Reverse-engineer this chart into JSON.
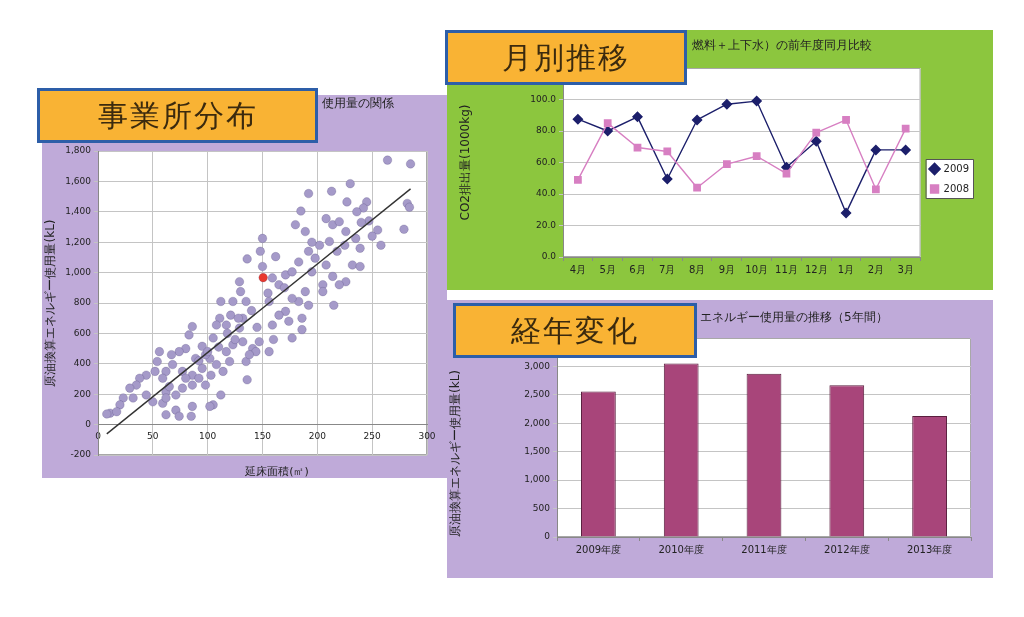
{
  "chart_data": [
    {
      "type": "scatter",
      "title": "事業所分布",
      "subtitle": "使用量の関係",
      "xlabel": "延床面積(㎡)",
      "ylabel": "原油換算エネルギー使用量(kL)",
      "xlim": [
        0,
        300
      ],
      "xticks": [
        0,
        50,
        100,
        150,
        200,
        250,
        300
      ],
      "ylim": [
        -200,
        1800
      ],
      "yticks": [
        -200,
        0,
        200,
        400,
        600,
        800,
        {
          "value": 1000,
          "label": "1,000"
        },
        {
          "value": 1200,
          "label": "1,200"
        },
        {
          "value": 1400,
          "label": "1,400"
        },
        {
          "value": 1600,
          "label": "1,600"
        },
        {
          "value": 1800,
          "label": "1,800"
        }
      ],
      "grid": true,
      "marker": "circle",
      "line_style": "solid",
      "series": [
        {
          "color": "#a59ac9",
          "x": [
            264,
            285,
            230,
            213,
            192,
            282,
            284,
            279,
            247,
            245,
            242,
            236,
            227,
            185,
            180,
            189,
            208,
            214,
            220,
            226,
            235,
            255,
            258,
            239,
            232,
            239,
            226,
            220,
            215,
            205,
            205,
            198,
            195,
            189,
            192,
            183,
            177,
            171,
            165,
            186,
            174,
            186,
            177,
            159,
            156,
            165,
            171,
            177,
            183,
            192,
            202,
            211,
            218,
            208,
            214,
            150,
            148,
            136,
            150,
            162,
            159,
            155,
            129,
            130,
            135,
            123,
            112,
            111,
            117,
            108,
            105,
            95,
            86,
            83,
            80,
            74,
            67,
            56,
            54,
            62,
            68,
            77,
            86,
            95,
            102,
            108,
            117,
            123,
            132,
            141,
            147,
            156,
            135,
            136,
            144,
            120,
            114,
            103,
            98,
            105,
            112,
            86,
            77,
            71,
            62,
            59,
            52,
            44,
            38,
            35,
            29,
            23,
            20,
            11,
            8,
            17,
            32,
            44,
            50,
            59,
            62,
            71,
            74,
            85,
            86,
            102,
            62,
            65,
            80,
            92,
            98,
            89,
            129,
            121,
            132,
            140,
            128,
            118,
            125,
            145,
            160,
            138,
            110,
            100,
            92,
            170,
            195,
            225,
            250,
            240
          ],
          "values": [
            1740,
            1715,
            1585,
            1535,
            1520,
            1455,
            1430,
            1285,
            1340,
            1465,
            1425,
            1400,
            1465,
            1405,
            1315,
            1270,
            1355,
            1315,
            1335,
            1270,
            1225,
            1280,
            1180,
            1160,
            1050,
            1040,
            940,
            920,
            785,
            920,
            875,
            1095,
            1005,
            875,
            785,
            810,
            830,
            745,
            720,
            700,
            680,
            625,
            570,
            655,
            810,
            920,
            985,
            1005,
            1070,
            1140,
            1180,
            1205,
            1140,
            1050,
            975,
            1225,
            1140,
            1090,
            1040,
            1105,
            965,
            865,
            940,
            875,
            810,
            810,
            810,
            700,
            655,
            655,
            570,
            515,
            645,
            590,
            500,
            480,
            460,
            480,
            415,
            350,
            395,
            350,
            325,
            370,
            435,
            395,
            480,
            525,
            545,
            500,
            545,
            480,
            415,
            295,
            480,
            415,
            350,
            325,
            260,
            130,
            195,
            260,
            240,
            195,
            215,
            305,
            350,
            325,
            305,
            260,
            240,
            175,
            130,
            75,
            70,
            85,
            175,
            195,
            150,
            140,
            65,
            95,
            55,
            55,
            120,
            120,
            175,
            250,
            305,
            305,
            460,
            435,
            635,
            720,
            700,
            750,
            700,
            600,
            560,
            640,
            560,
            460,
            510,
            480,
            420,
            900,
            1200,
            1180,
            1240,
            1330
          ]
        },
        {
          "color": "#e8392e",
          "x": [
            150.6
          ],
          "values": [
            967
          ]
        },
        {
          "type": "line",
          "color": "#333333",
          "marker": "none",
          "x": [
            8,
            285
          ],
          "values": [
            -61,
            1551
          ]
        }
      ]
    },
    {
      "type": "line",
      "title": "月別推移",
      "subtitle": "燃料＋上下水）の前年度同月比較",
      "ylabel": "CO2排出量(1000kg)",
      "categories": [
        "4月",
        "5月",
        "6月",
        "7月",
        "8月",
        "9月",
        "10月",
        "11月",
        "12月",
        "1月",
        "2月",
        "3月"
      ],
      "ylim": [
        0,
        120
      ],
      "yticks": [
        {
          "value": 0,
          "label": "0.0"
        },
        {
          "value": 20,
          "label": "20.0"
        },
        {
          "value": 40,
          "label": "40.0"
        },
        {
          "value": 60,
          "label": "60.0"
        },
        {
          "value": 80,
          "label": "80.0"
        },
        {
          "value": 100,
          "label": "100.0"
        }
      ],
      "grid": "y",
      "legend": "right",
      "line_style": "solid",
      "series": [
        {
          "name": "2009",
          "color": "#1c1f6b",
          "marker": "diamond",
          "values": [
            87.5,
            80,
            89,
            49.5,
            87,
            97,
            99,
            57,
            73.5,
            28,
            68,
            68
          ]
        },
        {
          "name": "2008",
          "color": "#d77fc2",
          "marker": "square",
          "values": [
            49,
            85,
            69.5,
            67,
            44,
            59,
            64,
            53,
            79,
            87,
            43,
            81.5
          ]
        }
      ]
    },
    {
      "type": "bar",
      "title": "経年変化",
      "subtitle": "エネルギー使用量の推移（5年間）",
      "ylabel": "原油換算エネルギー使用量(kL)",
      "categories": [
        "2009年度",
        "2010年度",
        "2011年度",
        "2012年度",
        "2013年度"
      ],
      "values": [
        2560,
        3050,
        2870,
        2670,
        2130
      ],
      "color": "#a8457a",
      "ylim": [
        0,
        3500
      ],
      "yticks": [
        0,
        500,
        {
          "value": 1000,
          "label": "1,000"
        },
        {
          "value": 1500,
          "label": "1,500"
        },
        {
          "value": 2000,
          "label": "2,000"
        },
        {
          "value": 2500,
          "label": "2,500"
        },
        {
          "value": 3000,
          "label": "3,000"
        }
      ],
      "grid": "y"
    }
  ]
}
